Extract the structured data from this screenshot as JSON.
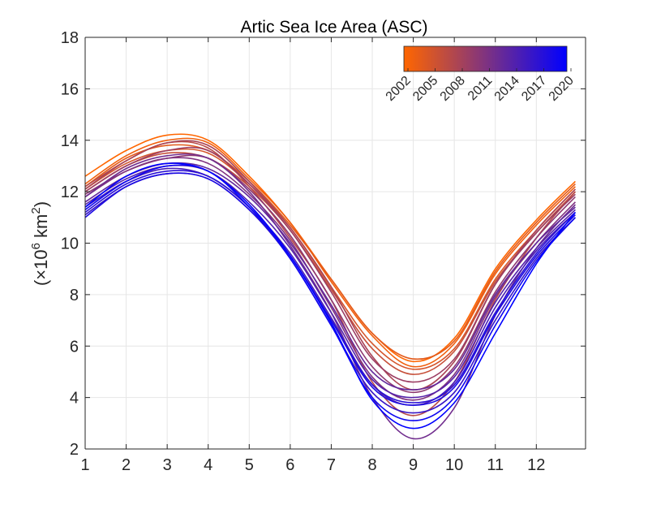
{
  "chart_data": {
    "type": "line",
    "title": "Artic Sea Ice Area (ASC)",
    "xlabel": "",
    "ylabel": "(×10⁶ km²)",
    "ylabel_parts": {
      "open": "(×10",
      "exp6": "6",
      "km": " km",
      "exp2": "2",
      "close": ")"
    },
    "xlim": [
      1,
      13.2
    ],
    "ylim": [
      2,
      18
    ],
    "xticks": [
      "1",
      "2",
      "3",
      "4",
      "5",
      "6",
      "7",
      "8",
      "9",
      "10",
      "11",
      "12"
    ],
    "yticks": [
      "2",
      "4",
      "6",
      "8",
      "10",
      "12",
      "14",
      "16",
      "18"
    ],
    "grid": true,
    "colorbar": {
      "location": "top-right",
      "range": [
        2002,
        2020
      ],
      "colors": [
        "#ff6600",
        "#0000ff"
      ],
      "ticks": [
        "2002",
        "2005",
        "2008",
        "2011",
        "2014",
        "2017",
        "2020"
      ]
    },
    "series_note": "One curve per year 2002-2020; values in 10^6 km² at months 1..13",
    "x": [
      1,
      2,
      3,
      4,
      5,
      6,
      7,
      8,
      9,
      10,
      11,
      12,
      13
    ],
    "series": [
      {
        "name": "2002",
        "values": [
          12.6,
          13.6,
          14.2,
          14.0,
          12.6,
          10.8,
          8.6,
          6.5,
          5.4,
          6.3,
          9.0,
          10.9,
          12.4
        ]
      },
      {
        "name": "2003",
        "values": [
          12.3,
          13.4,
          14.0,
          13.9,
          12.5,
          10.8,
          8.5,
          6.4,
          5.2,
          6.1,
          8.8,
          10.7,
          12.2
        ]
      },
      {
        "name": "2004",
        "values": [
          12.2,
          13.3,
          13.8,
          13.6,
          12.4,
          10.7,
          8.6,
          6.5,
          5.5,
          6.2,
          8.9,
          10.8,
          12.3
        ]
      },
      {
        "name": "2005",
        "values": [
          12.1,
          13.1,
          13.6,
          13.5,
          12.3,
          10.6,
          8.3,
          6.1,
          5.1,
          5.9,
          8.6,
          10.5,
          12.1
        ]
      },
      {
        "name": "2006",
        "values": [
          12.0,
          13.0,
          13.5,
          13.3,
          12.2,
          10.5,
          8.2,
          5.9,
          4.9,
          5.8,
          8.5,
          10.4,
          12.0
        ]
      },
      {
        "name": "2007",
        "values": [
          12.2,
          13.2,
          13.9,
          13.7,
          12.2,
          10.2,
          7.8,
          4.6,
          3.3,
          4.6,
          7.8,
          10.2,
          12.0
        ]
      },
      {
        "name": "2008",
        "values": [
          12.1,
          13.2,
          13.9,
          13.8,
          12.4,
          10.6,
          8.3,
          5.6,
          4.3,
          5.4,
          8.4,
          10.5,
          12.1
        ]
      },
      {
        "name": "2009",
        "values": [
          12.0,
          13.0,
          13.6,
          13.6,
          12.3,
          10.5,
          8.1,
          5.5,
          4.6,
          5.5,
          8.4,
          10.4,
          11.9
        ]
      },
      {
        "name": "2010",
        "values": [
          11.9,
          12.8,
          13.3,
          13.3,
          12.1,
          10.3,
          7.8,
          5.2,
          4.2,
          5.2,
          8.1,
          10.2,
          11.8
        ]
      },
      {
        "name": "2011",
        "values": [
          11.8,
          12.8,
          13.3,
          13.1,
          11.9,
          10.1,
          7.5,
          4.8,
          3.9,
          4.9,
          7.9,
          10.0,
          11.6
        ]
      },
      {
        "name": "2012",
        "values": [
          11.8,
          12.9,
          13.4,
          13.3,
          12.0,
          9.9,
          7.3,
          4.0,
          2.4,
          3.6,
          7.2,
          9.8,
          11.5
        ]
      },
      {
        "name": "2013",
        "values": [
          11.6,
          12.6,
          13.1,
          12.9,
          11.8,
          10.0,
          7.6,
          5.0,
          4.3,
          5.1,
          8.0,
          10.0,
          11.4
        ]
      },
      {
        "name": "2014",
        "values": [
          11.5,
          12.5,
          13.0,
          12.8,
          11.6,
          9.8,
          7.3,
          4.7,
          4.0,
          4.8,
          7.7,
          9.8,
          11.3
        ]
      },
      {
        "name": "2015",
        "values": [
          11.4,
          12.4,
          12.9,
          12.6,
          11.4,
          9.6,
          7.1,
          4.5,
          3.7,
          4.6,
          7.5,
          9.7,
          11.2
        ]
      },
      {
        "name": "2016",
        "values": [
          11.1,
          12.2,
          12.7,
          12.5,
          11.3,
          9.4,
          6.8,
          4.2,
          3.4,
          4.2,
          7.0,
          9.4,
          11.0
        ]
      },
      {
        "name": "2017",
        "values": [
          11.2,
          12.3,
          12.8,
          12.6,
          11.4,
          9.5,
          7.0,
          4.5,
          3.8,
          4.5,
          7.3,
          9.6,
          11.2
        ]
      },
      {
        "name": "2018",
        "values": [
          11.0,
          12.2,
          12.7,
          12.5,
          11.3,
          9.5,
          7.0,
          4.4,
          3.7,
          4.4,
          7.2,
          9.5,
          11.1
        ]
      },
      {
        "name": "2019",
        "values": [
          11.3,
          12.4,
          13.0,
          12.8,
          11.4,
          9.4,
          6.8,
          4.0,
          3.1,
          4.0,
          6.8,
          9.3,
          11.0
        ]
      },
      {
        "name": "2020",
        "values": [
          11.4,
          12.6,
          13.1,
          12.8,
          11.5,
          9.5,
          6.9,
          3.9,
          2.8,
          3.8,
          6.5,
          9.2,
          11.2
        ]
      }
    ]
  }
}
